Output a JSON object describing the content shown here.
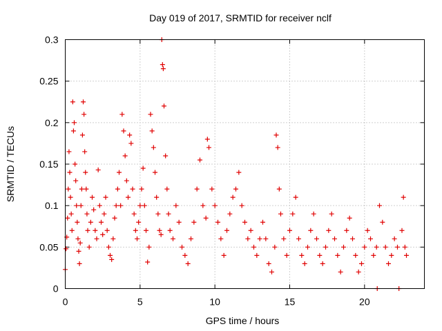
{
  "chart_data": {
    "type": "scatter",
    "title": "Day 019 of 2017, SRMTID for receiver nclf",
    "xlabel": "GPS time / hours",
    "ylabel": "SRMTID / TECUs",
    "xlim": [
      0,
      24
    ],
    "ylim": [
      0,
      0.3
    ],
    "x_ticks": [
      0,
      5,
      10,
      15,
      20
    ],
    "x_tick_labels": [
      "0",
      "5",
      "10",
      "15",
      "20"
    ],
    "y_ticks": [
      0,
      0.05,
      0.1,
      0.15,
      0.2,
      0.25,
      0.3
    ],
    "y_tick_labels": [
      "0",
      "0.05",
      "0.1",
      "0.15",
      "0.2",
      "0.25",
      "0.3"
    ],
    "grid": true,
    "marker": "plus",
    "color": "#e00000",
    "series": [
      {
        "name": "SRMTID",
        "points": [
          [
            0.0,
            0.023
          ],
          [
            0.05,
            0.048
          ],
          [
            0.1,
            0.062
          ],
          [
            0.15,
            0.085
          ],
          [
            0.2,
            0.12
          ],
          [
            0.25,
            0.165
          ],
          [
            0.3,
            0.14
          ],
          [
            0.35,
            0.11
          ],
          [
            0.4,
            0.09
          ],
          [
            0.45,
            0.07
          ],
          [
            0.5,
            0.225
          ],
          [
            0.55,
            0.19
          ],
          [
            0.6,
            0.2
          ],
          [
            0.65,
            0.15
          ],
          [
            0.7,
            0.13
          ],
          [
            0.75,
            0.1
          ],
          [
            0.8,
            0.08
          ],
          [
            0.85,
            0.06
          ],
          [
            0.9,
            0.045
          ],
          [
            0.95,
            0.03
          ],
          [
            1.0,
            0.055
          ],
          [
            1.05,
            0.1
          ],
          [
            1.1,
            0.12
          ],
          [
            1.15,
            0.185
          ],
          [
            1.2,
            0.225
          ],
          [
            1.25,
            0.21
          ],
          [
            1.3,
            0.165
          ],
          [
            1.35,
            0.14
          ],
          [
            1.4,
            0.12
          ],
          [
            1.45,
            0.09
          ],
          [
            1.5,
            0.07
          ],
          [
            1.6,
            0.05
          ],
          [
            1.7,
            0.08
          ],
          [
            1.8,
            0.11
          ],
          [
            1.9,
            0.095
          ],
          [
            2.0,
            0.07
          ],
          [
            2.1,
            0.06
          ],
          [
            2.2,
            0.143
          ],
          [
            2.3,
            0.1
          ],
          [
            2.4,
            0.08
          ],
          [
            2.5,
            0.065
          ],
          [
            2.6,
            0.09
          ],
          [
            2.7,
            0.11
          ],
          [
            2.8,
            0.07
          ],
          [
            2.9,
            0.05
          ],
          [
            3.0,
            0.04
          ],
          [
            3.1,
            0.035
          ],
          [
            3.2,
            0.06
          ],
          [
            3.3,
            0.085
          ],
          [
            3.4,
            0.1
          ],
          [
            3.5,
            0.12
          ],
          [
            3.6,
            0.14
          ],
          [
            3.7,
            0.1
          ],
          [
            3.8,
            0.21
          ],
          [
            3.9,
            0.19
          ],
          [
            4.0,
            0.16
          ],
          [
            4.1,
            0.13
          ],
          [
            4.2,
            0.11
          ],
          [
            4.3,
            0.185
          ],
          [
            4.4,
            0.175
          ],
          [
            4.5,
            0.12
          ],
          [
            4.6,
            0.09
          ],
          [
            4.7,
            0.07
          ],
          [
            4.8,
            0.06
          ],
          [
            4.9,
            0.08
          ],
          [
            5.0,
            0.1
          ],
          [
            5.1,
            0.12
          ],
          [
            5.2,
            0.145
          ],
          [
            5.3,
            0.1
          ],
          [
            5.4,
            0.07
          ],
          [
            5.5,
            0.032
          ],
          [
            5.6,
            0.05
          ],
          [
            5.7,
            0.21
          ],
          [
            5.8,
            0.19
          ],
          [
            5.9,
            0.17
          ],
          [
            6.0,
            0.14
          ],
          [
            6.1,
            0.11
          ],
          [
            6.2,
            0.09
          ],
          [
            6.3,
            0.07
          ],
          [
            6.4,
            0.065
          ],
          [
            6.45,
            0.3
          ],
          [
            6.5,
            0.27
          ],
          [
            6.55,
            0.265
          ],
          [
            6.6,
            0.22
          ],
          [
            6.7,
            0.16
          ],
          [
            6.8,
            0.12
          ],
          [
            6.9,
            0.09
          ],
          [
            7.0,
            0.07
          ],
          [
            7.2,
            0.06
          ],
          [
            7.4,
            0.1
          ],
          [
            7.6,
            0.08
          ],
          [
            7.8,
            0.05
          ],
          [
            8.0,
            0.04
          ],
          [
            8.2,
            0.03
          ],
          [
            8.4,
            0.06
          ],
          [
            8.6,
            0.08
          ],
          [
            8.8,
            0.12
          ],
          [
            9.0,
            0.155
          ],
          [
            9.2,
            0.1
          ],
          [
            9.4,
            0.085
          ],
          [
            9.5,
            0.18
          ],
          [
            9.6,
            0.17
          ],
          [
            9.8,
            0.12
          ],
          [
            10.0,
            0.1
          ],
          [
            10.2,
            0.08
          ],
          [
            10.4,
            0.06
          ],
          [
            10.6,
            0.04
          ],
          [
            10.8,
            0.07
          ],
          [
            11.0,
            0.09
          ],
          [
            11.2,
            0.11
          ],
          [
            11.4,
            0.12
          ],
          [
            11.6,
            0.14
          ],
          [
            11.8,
            0.1
          ],
          [
            12.0,
            0.08
          ],
          [
            12.2,
            0.06
          ],
          [
            12.4,
            0.07
          ],
          [
            12.6,
            0.05
          ],
          [
            12.8,
            0.04
          ],
          [
            13.0,
            0.06
          ],
          [
            13.2,
            0.08
          ],
          [
            13.4,
            0.06
          ],
          [
            13.6,
            0.03
          ],
          [
            13.8,
            0.02
          ],
          [
            14.0,
            0.05
          ],
          [
            14.1,
            0.185
          ],
          [
            14.2,
            0.17
          ],
          [
            14.3,
            0.12
          ],
          [
            14.4,
            0.09
          ],
          [
            14.6,
            0.06
          ],
          [
            14.8,
            0.04
          ],
          [
            15.0,
            0.07
          ],
          [
            15.2,
            0.09
          ],
          [
            15.4,
            0.11
          ],
          [
            15.6,
            0.06
          ],
          [
            15.8,
            0.04
          ],
          [
            16.0,
            0.03
          ],
          [
            16.2,
            0.05
          ],
          [
            16.4,
            0.07
          ],
          [
            16.6,
            0.09
          ],
          [
            16.8,
            0.06
          ],
          [
            17.0,
            0.04
          ],
          [
            17.2,
            0.03
          ],
          [
            17.4,
            0.05
          ],
          [
            17.6,
            0.07
          ],
          [
            17.8,
            0.09
          ],
          [
            18.0,
            0.06
          ],
          [
            18.2,
            0.04
          ],
          [
            18.4,
            0.02
          ],
          [
            18.6,
            0.05
          ],
          [
            18.8,
            0.07
          ],
          [
            19.0,
            0.085
          ],
          [
            19.2,
            0.06
          ],
          [
            19.4,
            0.04
          ],
          [
            19.6,
            0.02
          ],
          [
            19.8,
            0.03
          ],
          [
            20.0,
            0.05
          ],
          [
            20.2,
            0.07
          ],
          [
            20.4,
            0.06
          ],
          [
            20.6,
            0.04
          ],
          [
            20.8,
            0.05
          ],
          [
            20.85,
            0.0
          ],
          [
            21.0,
            0.1
          ],
          [
            21.2,
            0.08
          ],
          [
            21.4,
            0.05
          ],
          [
            21.6,
            0.03
          ],
          [
            21.8,
            0.04
          ],
          [
            22.0,
            0.06
          ],
          [
            22.2,
            0.05
          ],
          [
            22.3,
            0.0
          ],
          [
            22.5,
            0.07
          ],
          [
            22.6,
            0.11
          ],
          [
            22.7,
            0.05
          ],
          [
            22.8,
            0.04
          ]
        ]
      }
    ]
  }
}
